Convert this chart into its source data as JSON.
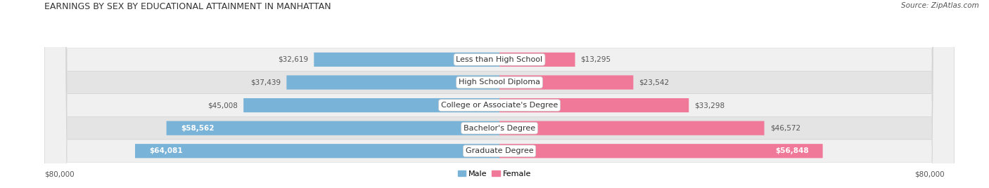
{
  "title": "EARNINGS BY SEX BY EDUCATIONAL ATTAINMENT IN MANHATTAN",
  "source": "Source: ZipAtlas.com",
  "categories": [
    "Less than High School",
    "High School Diploma",
    "College or Associate's Degree",
    "Bachelor's Degree",
    "Graduate Degree"
  ],
  "male_values": [
    32619,
    37439,
    45008,
    58562,
    64081
  ],
  "female_values": [
    13295,
    23542,
    33298,
    46572,
    56848
  ],
  "male_color": "#7ab3d8",
  "female_color": "#f07898",
  "row_bg_light": "#f0f0f0",
  "row_bg_dark": "#e4e4e4",
  "x_max": 80000,
  "legend_male": "Male",
  "legend_female": "Female",
  "title_fontsize": 9.0,
  "label_fontsize": 8.0,
  "value_fontsize": 7.5,
  "source_fontsize": 7.5,
  "axis_label_fontsize": 7.5,
  "background_color": "#ffffff",
  "inside_text_color": "#ffffff",
  "outside_text_color": "#555555"
}
